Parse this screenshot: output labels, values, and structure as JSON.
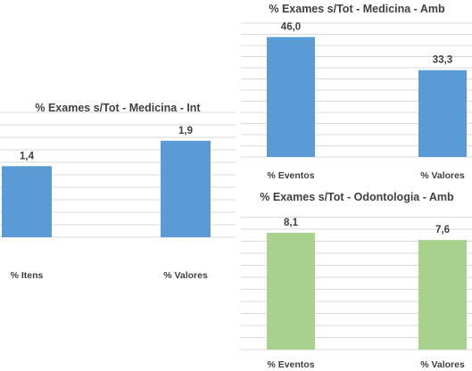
{
  "chart_data": [
    {
      "type": "bar",
      "title": "% Exames s/Tot  - Medicina - Int",
      "categories": [
        "% Itens",
        "% Valores"
      ],
      "values": [
        1.4,
        1.9
      ],
      "value_labels": [
        "1,4",
        "1,9"
      ],
      "ylim": [
        0,
        2.6
      ],
      "color": "#5b9bd5",
      "grid": true,
      "legend": "none"
    },
    {
      "type": "bar",
      "title": "% Exames s/Tot - Medicina - Amb",
      "categories": [
        "% Eventos",
        "% Valores"
      ],
      "values": [
        46.0,
        33.3
      ],
      "value_labels": [
        "46,0",
        "33,3"
      ],
      "ylim": [
        0,
        52
      ],
      "color": "#5b9bd5",
      "grid": true,
      "legend": "none"
    },
    {
      "type": "bar",
      "title": "% Exames s/Tot - Odontologia - Amb",
      "categories": [
        "% Eventos",
        "% Valores"
      ],
      "values": [
        8.1,
        7.6
      ],
      "value_labels": [
        "8,1",
        "7,6"
      ],
      "ylim": [
        0,
        9.4
      ],
      "color": "#a9d18e",
      "grid": true,
      "legend": "none"
    }
  ]
}
